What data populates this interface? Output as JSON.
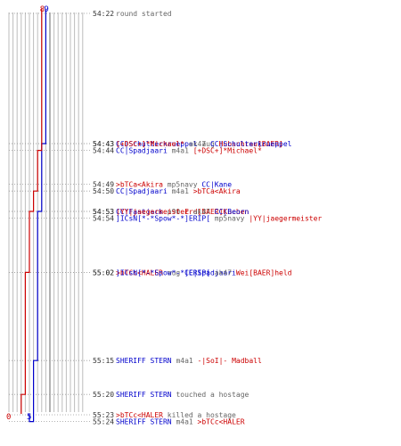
{
  "colors": {
    "team_a": "#0000cc",
    "team_b": "#cc0000",
    "neutral": "#666666",
    "time": "#333333",
    "grid": "#bdbdbd",
    "grid_dark": "#808080"
  },
  "chart_data": {
    "type": "line",
    "y_start_seconds": 3262,
    "y_end_seconds": 3324,
    "max_players": 9,
    "series": [
      {
        "team": "team_a",
        "start": 9,
        "end": 5,
        "label_top": "9",
        "label_bottom": "5",
        "counts": [
          9,
          8,
          8,
          8,
          8,
          8,
          7,
          7,
          7,
          7,
          7,
          6,
          6,
          6,
          5,
          5,
          5
        ]
      },
      {
        "team": "team_b",
        "start": 8,
        "end": 0,
        "label_top": "8",
        "label_bottom": "0",
        "counts": [
          8,
          8,
          8,
          7,
          7,
          6,
          6,
          5,
          5,
          5,
          4,
          4,
          3,
          3,
          3,
          3,
          0
        ]
      }
    ],
    "events": [
      {
        "time": "54:22",
        "parts": [
          {
            "text": "round started",
            "color": "neutral"
          }
        ]
      },
      {
        "time": "54:43",
        "parts": [
          {
            "text": "CC|Schulterkrueppel",
            "color": "team_a"
          },
          {
            "text": " aug ",
            "color": "neutral"
          },
          {
            "text": "Hubschrau[BAER]",
            "color": "team_b"
          }
        ]
      },
      {
        "time": "54:43",
        "parts": [
          {
            "text": "[+DSC+]*Michael*",
            "color": "team_b"
          },
          {
            "text": " ak47 ",
            "color": "neutral"
          },
          {
            "text": "CC|Schulterkrueppel",
            "color": "team_a"
          }
        ]
      },
      {
        "time": "54:44",
        "parts": [
          {
            "text": "CC|Spadjaari",
            "color": "team_a"
          },
          {
            "text": " m4a1 ",
            "color": "neutral"
          },
          {
            "text": "[+DSC+]*Michael*",
            "color": "team_b"
          }
        ]
      },
      {
        "time": "54:49",
        "parts": [
          {
            "text": ">bTCa<Akira",
            "color": "team_b"
          },
          {
            "text": " mp5navy ",
            "color": "neutral"
          },
          {
            "text": "CC|Kane",
            "color": "team_a"
          }
        ]
      },
      {
        "time": "54:50",
        "parts": [
          {
            "text": "CC|Spadjaari",
            "color": "team_a"
          },
          {
            "text": " m4a1 ",
            "color": "neutral"
          },
          {
            "text": ">bTCa<Akira",
            "color": "team_b"
          }
        ]
      },
      {
        "time": "54:53",
        "parts": [
          {
            "text": "CC|Fastjack",
            "color": "team_a"
          },
          {
            "text": " p90 ",
            "color": "neutral"
          },
          {
            "text": "Erd[BAER]Kuchen",
            "color": "team_b"
          }
        ]
      },
      {
        "time": "54:53",
        "parts": [
          {
            "text": "|YY|jaegermeister",
            "color": "team_b"
          },
          {
            "text": " ak47 ",
            "color": "neutral"
          },
          {
            "text": "CC|Beorn",
            "color": "team_a"
          }
        ]
      },
      {
        "time": "54:54",
        "parts": [
          {
            "text": "]ICsN[*-*Spow*-*]ERIP[",
            "color": "team_a"
          },
          {
            "text": " mp5navy ",
            "color": "neutral"
          },
          {
            "text": "|YY|jaegermeister",
            "color": "team_b"
          }
        ]
      },
      {
        "time": "55:02",
        "parts": [
          {
            "text": ">bTCc<HALER",
            "color": "team_b"
          },
          {
            "text": " aug ",
            "color": "neutral"
          },
          {
            "text": "CC|Spadjaari",
            "color": "team_a"
          }
        ]
      },
      {
        "time": "55:02",
        "parts": [
          {
            "text": "]ICsN[*-*Spow*-*]ERIP[",
            "color": "team_a"
          },
          {
            "text": " ak47 ",
            "color": "neutral"
          },
          {
            "text": "Wei[BAER]held",
            "color": "team_b"
          }
        ]
      },
      {
        "time": "55:15",
        "parts": [
          {
            "text": "SHERIFF STERN",
            "color": "team_a"
          },
          {
            "text": " m4a1 ",
            "color": "neutral"
          },
          {
            "text": "-|SoI|- Madball",
            "color": "team_b"
          }
        ]
      },
      {
        "time": "55:20",
        "parts": [
          {
            "text": "SHERIFF STERN",
            "color": "team_a"
          },
          {
            "text": " touched a hostage",
            "color": "neutral"
          }
        ]
      },
      {
        "time": "55:23",
        "parts": [
          {
            "text": ">bTCc<HALER",
            "color": "team_b"
          },
          {
            "text": " killed a hostage",
            "color": "neutral"
          }
        ]
      },
      {
        "time": "55:24",
        "parts": [
          {
            "text": "SHERIFF STERN",
            "color": "team_a"
          },
          {
            "text": " m4a1 ",
            "color": "neutral"
          },
          {
            "text": ">bTCc<HALER",
            "color": "team_b"
          }
        ]
      }
    ]
  }
}
